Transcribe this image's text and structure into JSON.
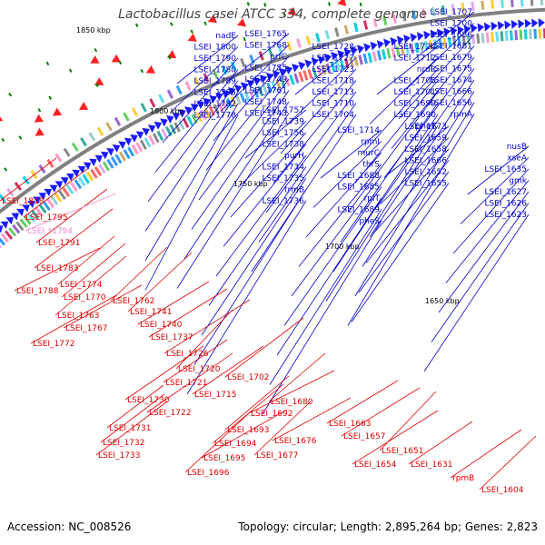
{
  "title": "Lactobacillus casei ATCC 334, complete genome",
  "footer": {
    "accession": "Accession: NC_008526",
    "summary": "Topology: circular; Length: 2,895,264 bp; Genes: 2,823"
  },
  "colors": {
    "backbone": "#808080",
    "forward_label": "#0000cc",
    "reverse_label": "#e00000",
    "rna_label": "#ff88cc",
    "forward_arrow": "#1a1aff",
    "reverse_arrow": "#ff2020",
    "tick": "#008000"
  },
  "scale_labels": [
    "1850 kbp",
    "1800 kbp",
    "1750 kbp",
    "1700 kbp",
    "1650 kbp"
  ],
  "forward_labels": [
    "nadE",
    "LSEI_1800",
    "LSEI_1790",
    "LSEI_1780",
    "LSEI_1789",
    "LSEI_1785",
    "LSEI_1782",
    "LSEI_1778",
    "LSEI_1765",
    "LSEI_1768",
    "prfC",
    "LSEI_1755",
    "LSEI_1749",
    "LSEI_1761",
    "LSEI_1748",
    "LSEI_1743",
    "LSEI_1757",
    "LSEI_1739",
    "LSEI_1756",
    "LSEI_1738",
    "purH",
    "LSEI_1734",
    "LSEI_1735",
    "trmB",
    "LSEI_1736",
    "LSEI_1728",
    "LSEI_1727",
    "LSEI_1723",
    "LSEI_1718",
    "LSEI_1713",
    "LSEI_1710",
    "LSEI_1704",
    "LSEI_1714",
    "rpmI",
    "murC",
    "thrS",
    "LSEI_1688",
    "LSEI_1685",
    "rplT",
    "LSEI_1689",
    "pheS",
    "LSEI_1724",
    "LSEI_1712",
    "nrdR",
    "LSEI_1705",
    "LSEI_1701",
    "LSEI_1699",
    "LSEI_1690",
    "pheT",
    "LSEI_1673",
    "LSEI_1659",
    "LSEI_1658",
    "LSEI_1666",
    "LSEI_1652",
    "LSEI_1655",
    "LSEI_1707",
    "LSEI_1700",
    "LSEI_1686",
    "LSEI_1681",
    "LSEI_1679",
    "LSEI_1675",
    "LSEI_1674",
    "LSEI_1666",
    "LSEI_1656",
    "rpmA",
    "nusB",
    "xseA",
    "LSEI_1635",
    "gmk",
    "LSEI_1627",
    "LSEI_1626",
    "LSEI_1623"
  ],
  "reverse_labels": [
    "LSEI_1818",
    "LSEI_1795",
    "LSEI_1791",
    "LSEI_1783",
    "LSEI_1788",
    "LSEI_1774",
    "LSEI_1770",
    "LSEI_1763",
    "LSEI_1767",
    "LSEI_1772",
    "LSEI_1762",
    "LSEI_1741",
    "LSEI_1740",
    "LSEI_1737",
    "LSEI_1726",
    "LSEI_1720",
    "LSEI_1721",
    "LSEI_1715",
    "LSEI_1730",
    "LSEI_1722",
    "LSEI_1731",
    "LSEI_1732",
    "LSEI_1733",
    "LSEI_1702",
    "LSEI_1692",
    "LSEI_1680",
    "LSEI_1693",
    "LSEI_1694",
    "LSEI_1676",
    "LSEI_1695",
    "LSEI_1677",
    "LSEI_1696",
    "LSEI_1663",
    "LSEI_1657",
    "LSEI_1654",
    "LSEI_1651",
    "LSEI_1631",
    "rpmB",
    "LSEI_1604"
  ],
  "rna_labels": [
    "LSEI_t1794"
  ]
}
